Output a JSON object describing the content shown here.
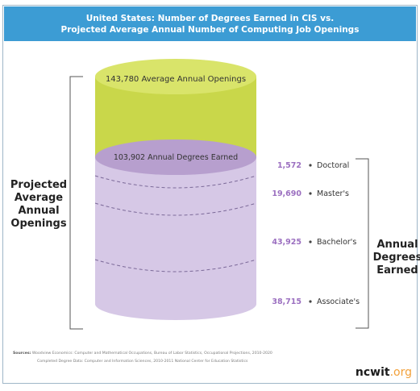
{
  "chart_data": {
    "type": "stacked-cylinder",
    "title_line_1": "United States: Number of Degrees Earned in CIS vs.",
    "title_line_2": "Projected Average Annual Number of Computing Job Openings",
    "total": {
      "value": 143780,
      "label": "143,780 Average Annual Openings"
    },
    "degrees_total": {
      "value": 103902,
      "label": "103,902 Annual Degrees Earned"
    },
    "segments": [
      {
        "name": "Doctoral",
        "value": 1572,
        "label": "1,572"
      },
      {
        "name": "Master's",
        "value": 19690,
        "label": "19,690"
      },
      {
        "name": "Bachelor's",
        "value": 43925,
        "label": "43,925"
      },
      {
        "name": "Associate's",
        "value": 38715,
        "label": "38,715"
      }
    ],
    "left_label_lines": [
      "Projected",
      "Average",
      "Annual",
      "Openings"
    ],
    "right_label_lines": [
      "Annual",
      "Degrees",
      "Earned"
    ]
  },
  "colors": {
    "title_bg": "#3c9cd4",
    "openings_top": "#d9e46a",
    "openings_body": "#c9d74a",
    "degrees_top": "#b79fce",
    "degrees_body": "#d6c8e6",
    "value_text": "#9b6fc0",
    "logo_accent": "#f2a13b"
  },
  "sources": {
    "label": "Sources:",
    "line_1": "Woodview Economics: Computer and Mathematical Occupations, Bureau of Labor Statistics, Occupational Projections, 2010-2020",
    "line_2": "Completed Degree Data: Computer and Information Sciences, 2010-2011 National Center for Education Statistics"
  },
  "logo": {
    "name": "ncwit",
    "tld": ".org"
  }
}
